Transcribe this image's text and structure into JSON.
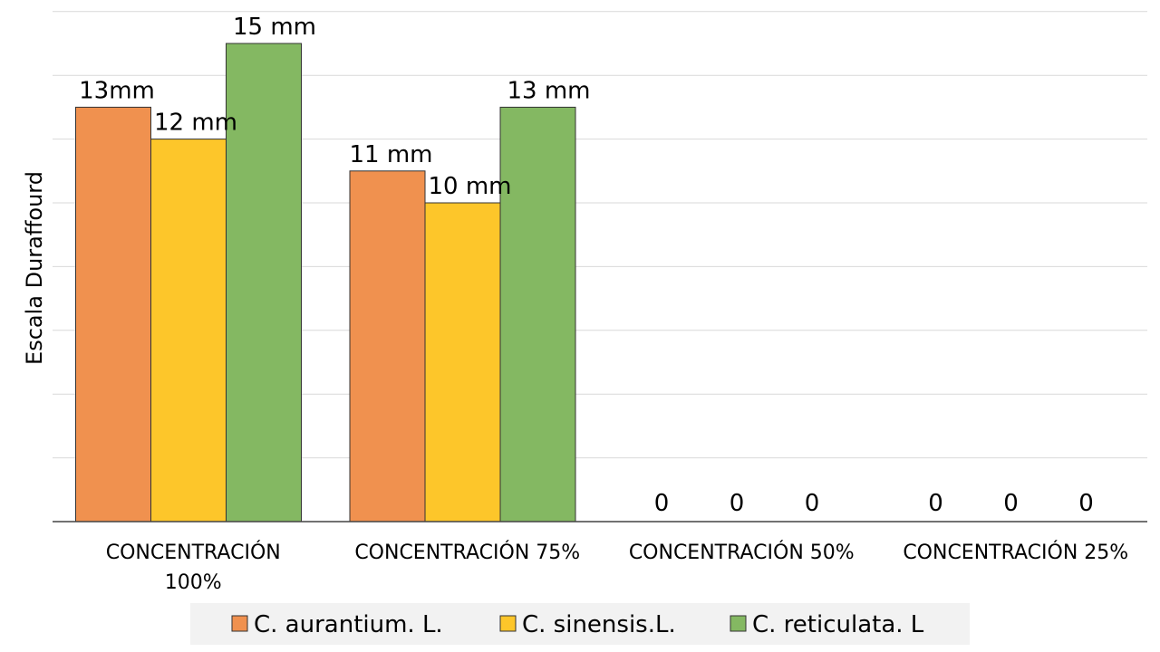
{
  "chart_data": {
    "type": "bar",
    "title": "",
    "xlabel": "",
    "ylabel": "Escala Duraffourd",
    "ylim": [
      0,
      16
    ],
    "grid": true,
    "legend_position": "bottom",
    "categories": [
      [
        "CONCENTRACIÓN",
        "100%"
      ],
      [
        "CONCENTRACIÓN 75%"
      ],
      [
        "CONCENTRACIÓN 50%"
      ],
      [
        "CONCENTRACIÓN 25%"
      ]
    ],
    "series": [
      {
        "name": "C. aurantium. L.",
        "color": "#f0914f",
        "values": [
          13,
          11,
          0,
          0
        ],
        "labels": [
          "13mm",
          "11 mm",
          "0",
          "0"
        ]
      },
      {
        "name": "C. sinensis.L.",
        "color": "#fdc62a",
        "values": [
          12,
          10,
          0,
          0
        ],
        "labels": [
          "12 mm",
          "10 mm",
          "0",
          "0"
        ]
      },
      {
        "name": "C. reticulata. L",
        "color": "#84b862",
        "values": [
          15,
          13,
          0,
          0
        ],
        "labels": [
          "15 mm",
          "13 mm",
          "0",
          "0"
        ]
      }
    ]
  }
}
